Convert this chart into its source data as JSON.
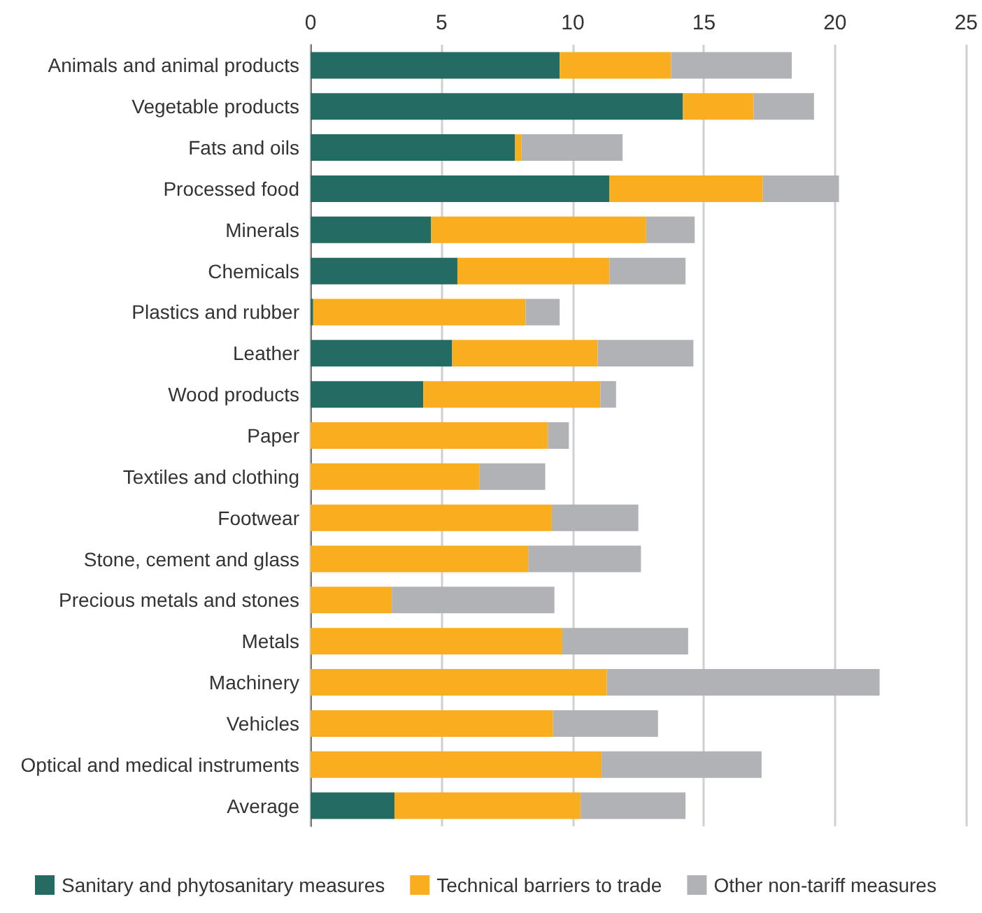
{
  "chart_data": {
    "type": "bar",
    "orientation": "horizontal",
    "stacked": true,
    "categories": [
      "Animals and animal products",
      "Vegetable products",
      "Fats and oils",
      "Processed food",
      "Minerals",
      "Chemicals",
      "Plastics and rubber",
      "Leather",
      "Wood products",
      "Paper",
      "Textiles and clothing",
      "Footwear",
      "Stone, cement and glass",
      "Precious metals and stones",
      "Metals",
      "Machinery",
      "Vehicles",
      "Optical and medical instruments",
      "Average"
    ],
    "series": [
      {
        "name": "Sanitary and phytosanitary measures",
        "color": "#236b63",
        "values": [
          9.5,
          14.2,
          7.8,
          11.4,
          4.6,
          5.6,
          0.1,
          5.4,
          4.3,
          0,
          0,
          0,
          0,
          0,
          0,
          0,
          0,
          0,
          3.2
        ]
      },
      {
        "name": "Technical barriers to trade",
        "color": "#f9ae1f",
        "values": [
          4.25,
          2.7,
          0.25,
          5.85,
          8.2,
          5.8,
          8.1,
          5.55,
          6.75,
          9.05,
          6.45,
          9.2,
          8.3,
          3.1,
          9.6,
          11.3,
          9.25,
          11.1,
          7.1
        ]
      },
      {
        "name": "Other non-tariff measures",
        "color": "#b1b2b5",
        "values": [
          4.6,
          2.3,
          3.85,
          2.9,
          1.85,
          2.9,
          1.3,
          3.65,
          0.6,
          0.8,
          2.5,
          3.3,
          4.3,
          6.2,
          4.8,
          10.4,
          4.0,
          6.1,
          4.0
        ]
      }
    ],
    "xlim": [
      0,
      25
    ],
    "xticks": [
      0,
      5,
      10,
      15,
      20,
      25
    ],
    "grid": "x",
    "legend": "bottom"
  }
}
